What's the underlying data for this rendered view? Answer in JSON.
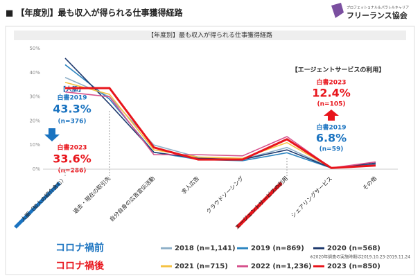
{
  "header": {
    "title": "■ 【年度別】最も収入が得られる仕事獲得経路",
    "logo_tagline": "プロフェッショナル＆パラレルキャリア",
    "logo_name": "フリーランス協会"
  },
  "chart_data": {
    "type": "line",
    "title": "【年度別】最も収入が得られる仕事獲得経路",
    "categories": [
      "人脈（知人の紹介含む）",
      "過去・現在の取引先",
      "自分自身の広告宣伝活動",
      "求人広告",
      "クラウドソーシング",
      "エージェントサービスの利用",
      "シェアリングサービス",
      "その他"
    ],
    "series": [
      {
        "name": "2018 (n=1,141)",
        "color": "#8fb0c8",
        "values": [
          38,
          30,
          10,
          5,
          4,
          9,
          0.5,
          1.5
        ]
      },
      {
        "name": "2019 (n=869)",
        "color": "#2e86c1",
        "values": [
          43.3,
          29,
          7,
          4,
          3.5,
          6.8,
          0.5,
          2
        ]
      },
      {
        "name": "2020 (n=568)",
        "color": "#1f3a6e",
        "values": [
          46,
          27,
          7,
          4.5,
          4,
          8,
          0.5,
          2.5
        ]
      },
      {
        "name": "2021 (n=715)",
        "color": "#f5c242",
        "values": [
          36,
          31,
          8,
          5,
          4.5,
          11,
          0.5,
          1.5
        ]
      },
      {
        "name": "2022 (n=1,236)",
        "color": "#d6518c",
        "values": [
          32,
          30,
          6,
          6,
          5.5,
          13.5,
          0.5,
          3
        ]
      },
      {
        "name": "2023 (n=850)",
        "color": "#e8141b",
        "values": [
          33.6,
          33.6,
          9,
          4,
          4,
          12.4,
          0.5,
          1.5
        ]
      }
    ],
    "ylim": [
      0,
      50
    ],
    "yticks": [
      {
        "value": 0,
        "label": "0%"
      },
      {
        "value": 10,
        "label": "10%"
      },
      {
        "value": 20,
        "label": "20%"
      },
      {
        "value": 30,
        "label": "30%"
      },
      {
        "value": 40,
        "label": "40%"
      },
      {
        "value": 50,
        "label": "50%"
      }
    ],
    "grid": false,
    "legend_groups": [
      "コロナ禍前",
      "コロナ禍後"
    ],
    "note": "※2020年調査の実施時期は2019.10.23-2019.11.24",
    "annotations": [
      {
        "heading": "【人脈】",
        "items": [
          {
            "label": "白書2019",
            "value": "43.3%",
            "n": "(n=376)"
          },
          {
            "label": "白書2023",
            "value": "33.6%",
            "n": "(n=286)"
          }
        ]
      },
      {
        "heading": "【エージェントサービスの利用】",
        "items": [
          {
            "label": "白書2023",
            "value": "12.4%",
            "n": "(n=105)"
          },
          {
            "label": "白書2019",
            "value": "6.8%",
            "n": "(n=59)"
          }
        ]
      }
    ]
  }
}
